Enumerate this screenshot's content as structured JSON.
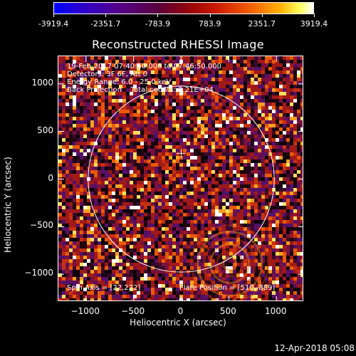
{
  "colorbar": {
    "labels": [
      "-3919.4",
      "-2351.7",
      "-783.9",
      "783.9",
      "2351.7",
      "3919.4"
    ],
    "min": -3919.4,
    "max": 3919.4,
    "colors": [
      "#0000ff",
      "#55008a",
      "#8a0010",
      "#f25a00",
      "#ffff60",
      "#ffffff"
    ]
  },
  "chart_data": {
    "type": "heatmap",
    "title": "Reconstructed RHESSI Image",
    "xlabel": "Heliocentric X (arcsec)",
    "ylabel": "Heliocentric Y (arcsec)",
    "xlim": [
      -1290,
      1290
    ],
    "ylim": [
      -1290,
      1290
    ],
    "xticks": [
      -1000,
      -500,
      0,
      500,
      1000
    ],
    "yticks": [
      -1000,
      -500,
      0,
      500,
      1000
    ],
    "xtick_labels": [
      "−1000",
      "−500",
      "0",
      "500",
      "1000"
    ],
    "ytick_labels": [
      "−1000",
      "−500",
      "0",
      "500",
      "1000"
    ],
    "solar_limb_radius_arcsec": 977,
    "sun_center_marker": [
      0,
      270
    ],
    "info_lines": [
      "19-Feb-2017 07:40:50.000 to 07:46:50.000",
      "Detectors: 3F 6F, Att 0",
      "Energy Range: 6.0 - 25.0 keV",
      "Back Projection    Total counts: 2.21E+04"
    ],
    "spin_axis": "Spin Axis = [22,222]",
    "flare_position": "Flare Position = [510,-889]",
    "flare_xy": [
      510,
      -889
    ]
  },
  "timestamp": "12-Apr-2018 05:08"
}
